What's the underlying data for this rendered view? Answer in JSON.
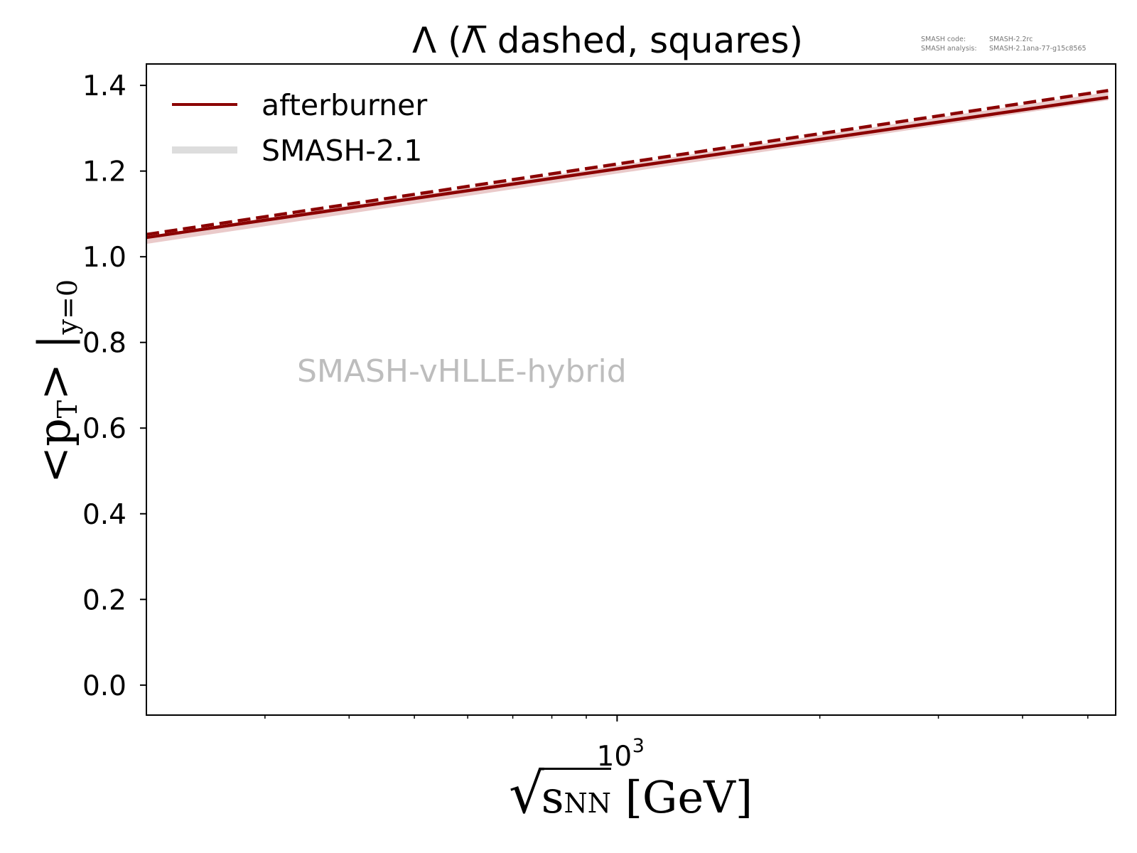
{
  "title": "Λ (Λ̅ dashed, squares)",
  "meta": {
    "code_label": "SMASH code:",
    "code_value": "SMASH-2.2rc",
    "analysis_label": "SMASH analysis:",
    "analysis_value": "SMASH-2.1ana-77-g15c8565"
  },
  "watermark": "SMASH-vHLLE-hybrid",
  "legend": [
    {
      "label": "afterburner",
      "color": "#8b0000"
    },
    {
      "label": "SMASH-2.1",
      "color": "#dddddd"
    }
  ],
  "ylabel": {
    "main": "<p",
    "sub_t": "T",
    "mid": "> |",
    "sub_y": "y=0"
  },
  "xlabel": {
    "sqrt": "√",
    "s": "s",
    "sub": "NN",
    "unit": " [GeV]"
  },
  "colors": {
    "afterburner": "#8b0000",
    "smash21": "#dddddd",
    "band": "#e3b8b8",
    "axis": "#000000"
  },
  "chart_data": {
    "type": "line",
    "xscale": "log",
    "xlim": [
      200,
      5500
    ],
    "ylim": [
      -0.07,
      1.45
    ],
    "yticks": [
      0.0,
      0.2,
      0.4,
      0.6,
      0.8,
      1.0,
      1.2,
      1.4
    ],
    "ytick_labels": [
      "0.0",
      "0.2",
      "0.4",
      "0.6",
      "0.8",
      "1.0",
      "1.2",
      "1.4"
    ],
    "xticks_major": [
      1000
    ],
    "xtick_major_labels": [
      "10",
      "3"
    ],
    "xticks_minor": [
      300,
      400,
      500,
      600,
      700,
      800,
      900,
      2000,
      3000,
      4000,
      5000
    ],
    "series": [
      {
        "name": "afterburner",
        "particle": "Λ",
        "style": "solid",
        "x": [
          200,
          5360
        ],
        "y": [
          1.045,
          1.372
        ]
      },
      {
        "name": "afterburner",
        "particle": "Λ̅",
        "style": "dashed",
        "x": [
          200,
          5360
        ],
        "y": [
          1.052,
          1.388
        ]
      },
      {
        "name": "SMASH-2.1",
        "particle": "Λ",
        "style": "band",
        "x": [
          200,
          5360
        ],
        "y": [
          1.04,
          1.375
        ]
      }
    ]
  }
}
